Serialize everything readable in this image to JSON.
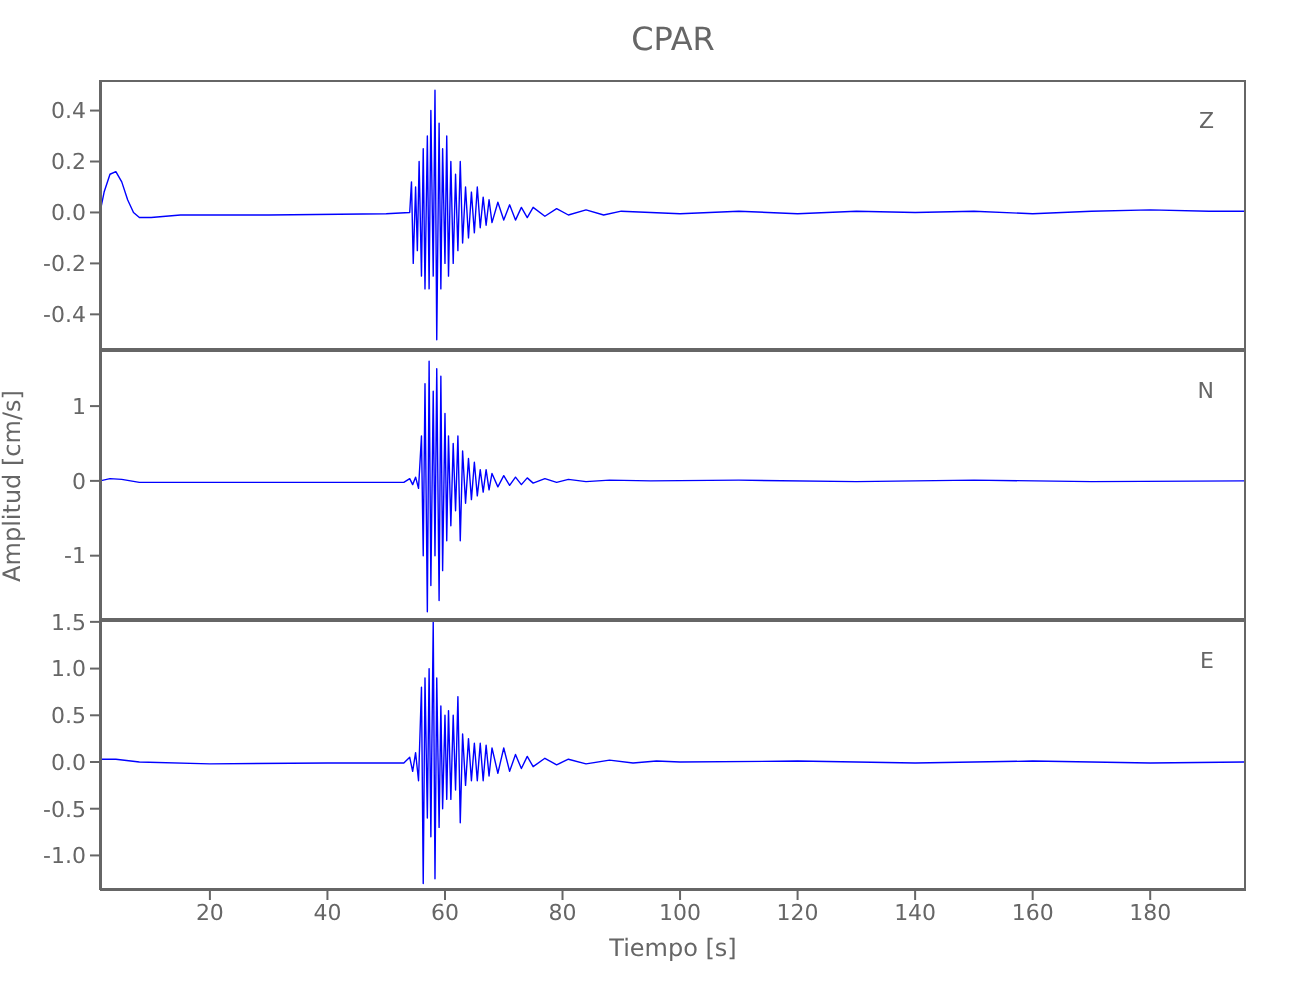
{
  "chart_data": [
    {
      "type": "line",
      "title": "CPAR",
      "annotations": [
        "Z"
      ],
      "color": "#0000ff",
      "xlim": [
        1.3,
        196.3
      ],
      "xticks": [
        20,
        40,
        60,
        80,
        100,
        120,
        140,
        160,
        180
      ],
      "ylim": [
        -0.54,
        0.52
      ],
      "yticks": [
        -0.4,
        -0.2,
        {
          "value": 0,
          "label": "0.0"
        },
        0.2,
        0.4
      ],
      "tick_labels": "y",
      "x": [
        1.3,
        2,
        3,
        4,
        5,
        6,
        7,
        8,
        10,
        15,
        30,
        50,
        54,
        54.3,
        54.6,
        55,
        55.3,
        55.6,
        56,
        56.3,
        56.6,
        57,
        57.3,
        57.6,
        58,
        58.3,
        58.6,
        59,
        59.3,
        59.6,
        60,
        60.3,
        60.6,
        61,
        61.4,
        61.8,
        62.2,
        62.6,
        63,
        63.5,
        64,
        64.5,
        65,
        65.5,
        66,
        66.5,
        67,
        67.5,
        68,
        69,
        70,
        71,
        72,
        73,
        74,
        75,
        77,
        79,
        81,
        84,
        87,
        90,
        95,
        100,
        110,
        120,
        130,
        140,
        150,
        160,
        170,
        180,
        190,
        196
      ],
      "values": [
        0,
        0.08,
        0.15,
        0.16,
        0.12,
        0.05,
        0.0,
        -0.02,
        -0.02,
        -0.01,
        -0.01,
        -0.005,
        0,
        0.12,
        -0.2,
        0.1,
        -0.15,
        0.2,
        -0.25,
        0.25,
        -0.3,
        0.3,
        -0.3,
        0.4,
        -0.25,
        0.48,
        -0.5,
        0.35,
        -0.3,
        0.25,
        -0.2,
        0.3,
        -0.25,
        0.2,
        -0.2,
        0.15,
        -0.15,
        0.2,
        -0.12,
        0.1,
        -0.1,
        0.08,
        -0.08,
        0.1,
        -0.06,
        0.06,
        -0.05,
        0.05,
        -0.04,
        0.04,
        -0.03,
        0.03,
        -0.03,
        0.02,
        -0.02,
        0.02,
        -0.015,
        0.015,
        -0.01,
        0.01,
        -0.01,
        0.005,
        0,
        -0.005,
        0.005,
        -0.005,
        0.005,
        0,
        0.005,
        -0.005,
        0.005,
        0.01,
        0.005,
        0.005
      ]
    },
    {
      "type": "line",
      "ylabel": "Amplitud [cm/s]",
      "annotations": [
        "N"
      ],
      "color": "#0000ff",
      "xlim": [
        1.3,
        196.3
      ],
      "xticks": [
        20,
        40,
        60,
        80,
        100,
        120,
        140,
        160,
        180
      ],
      "ylim": [
        -1.86,
        1.75
      ],
      "yticks": [
        -1,
        0,
        1
      ],
      "tick_labels": "y",
      "x": [
        1.3,
        3,
        5,
        8,
        20,
        40,
        53,
        54,
        54.5,
        55,
        55.5,
        56,
        56.3,
        56.6,
        57,
        57.3,
        57.6,
        58,
        58.3,
        58.6,
        59,
        59.3,
        59.6,
        60,
        60.3,
        60.6,
        61,
        61.4,
        61.8,
        62.2,
        62.6,
        63,
        63.5,
        64,
        64.5,
        65,
        65.5,
        66,
        66.5,
        67,
        67.5,
        68,
        69,
        70,
        71,
        72,
        73,
        74,
        75,
        77,
        79,
        81,
        84,
        88,
        95,
        110,
        130,
        150,
        170,
        196
      ],
      "values": [
        0,
        0.03,
        0.02,
        -0.02,
        -0.02,
        -0.02,
        -0.02,
        0.03,
        -0.05,
        0.05,
        -0.1,
        0.6,
        -1.0,
        1.3,
        -1.75,
        1.6,
        -1.4,
        1.2,
        -1.0,
        1.5,
        -1.6,
        1.4,
        -1.2,
        0.9,
        -0.8,
        0.6,
        -0.6,
        0.5,
        -0.4,
        0.6,
        -0.8,
        0.4,
        -0.3,
        0.3,
        -0.25,
        0.25,
        -0.2,
        0.15,
        -0.15,
        0.15,
        -0.12,
        0.1,
        -0.08,
        0.07,
        -0.06,
        0.05,
        -0.05,
        0.04,
        -0.03,
        0.03,
        -0.02,
        0.02,
        -0.01,
        0.01,
        0,
        0.01,
        -0.01,
        0.01,
        -0.01,
        0
      ]
    },
    {
      "type": "line",
      "xlabel": "Tiempo [s]",
      "annotations": [
        "E"
      ],
      "color": "#0000ff",
      "xlim": [
        1.3,
        196.3
      ],
      "xticks": [
        20,
        40,
        60,
        80,
        100,
        120,
        140,
        160,
        180
      ],
      "ylim": [
        -1.37,
        1.52
      ],
      "yticks": [
        {
          "value": -1,
          "label": "-1.0"
        },
        -0.5,
        {
          "value": 0,
          "label": "0.0"
        },
        0.5,
        {
          "value": 1,
          "label": "1.0"
        },
        1.5
      ],
      "x": [
        1.3,
        4,
        8,
        20,
        40,
        53,
        54,
        54.5,
        55,
        55.5,
        56,
        56.3,
        56.6,
        57,
        57.3,
        57.6,
        58,
        58.3,
        58.6,
        59,
        59.3,
        59.6,
        60,
        60.3,
        60.6,
        61,
        61.4,
        61.8,
        62.2,
        62.6,
        63,
        63.5,
        64,
        64.5,
        65,
        65.5,
        66,
        66.5,
        67,
        67.5,
        68,
        69,
        70,
        71,
        72,
        73,
        74,
        75,
        77,
        79,
        81,
        84,
        88,
        92,
        96,
        100,
        120,
        140,
        160,
        180,
        196
      ],
      "values": [
        0.03,
        0.03,
        0.0,
        -0.02,
        -0.01,
        -0.01,
        0.05,
        -0.1,
        0.1,
        -0.2,
        0.8,
        -1.3,
        0.9,
        -0.6,
        1.0,
        -0.8,
        1.5,
        -1.25,
        0.9,
        -0.7,
        0.6,
        -0.5,
        0.5,
        -0.4,
        0.55,
        -0.4,
        0.5,
        -0.3,
        0.7,
        -0.65,
        0.3,
        -0.25,
        0.25,
        -0.2,
        0.2,
        -0.2,
        0.2,
        -0.2,
        0.18,
        -0.15,
        0.15,
        -0.12,
        0.15,
        -0.1,
        0.08,
        -0.07,
        0.06,
        -0.05,
        0.04,
        -0.03,
        0.03,
        -0.02,
        0.02,
        -0.01,
        0.01,
        0,
        0.01,
        -0.01,
        0.01,
        -0.01,
        0
      ]
    }
  ]
}
